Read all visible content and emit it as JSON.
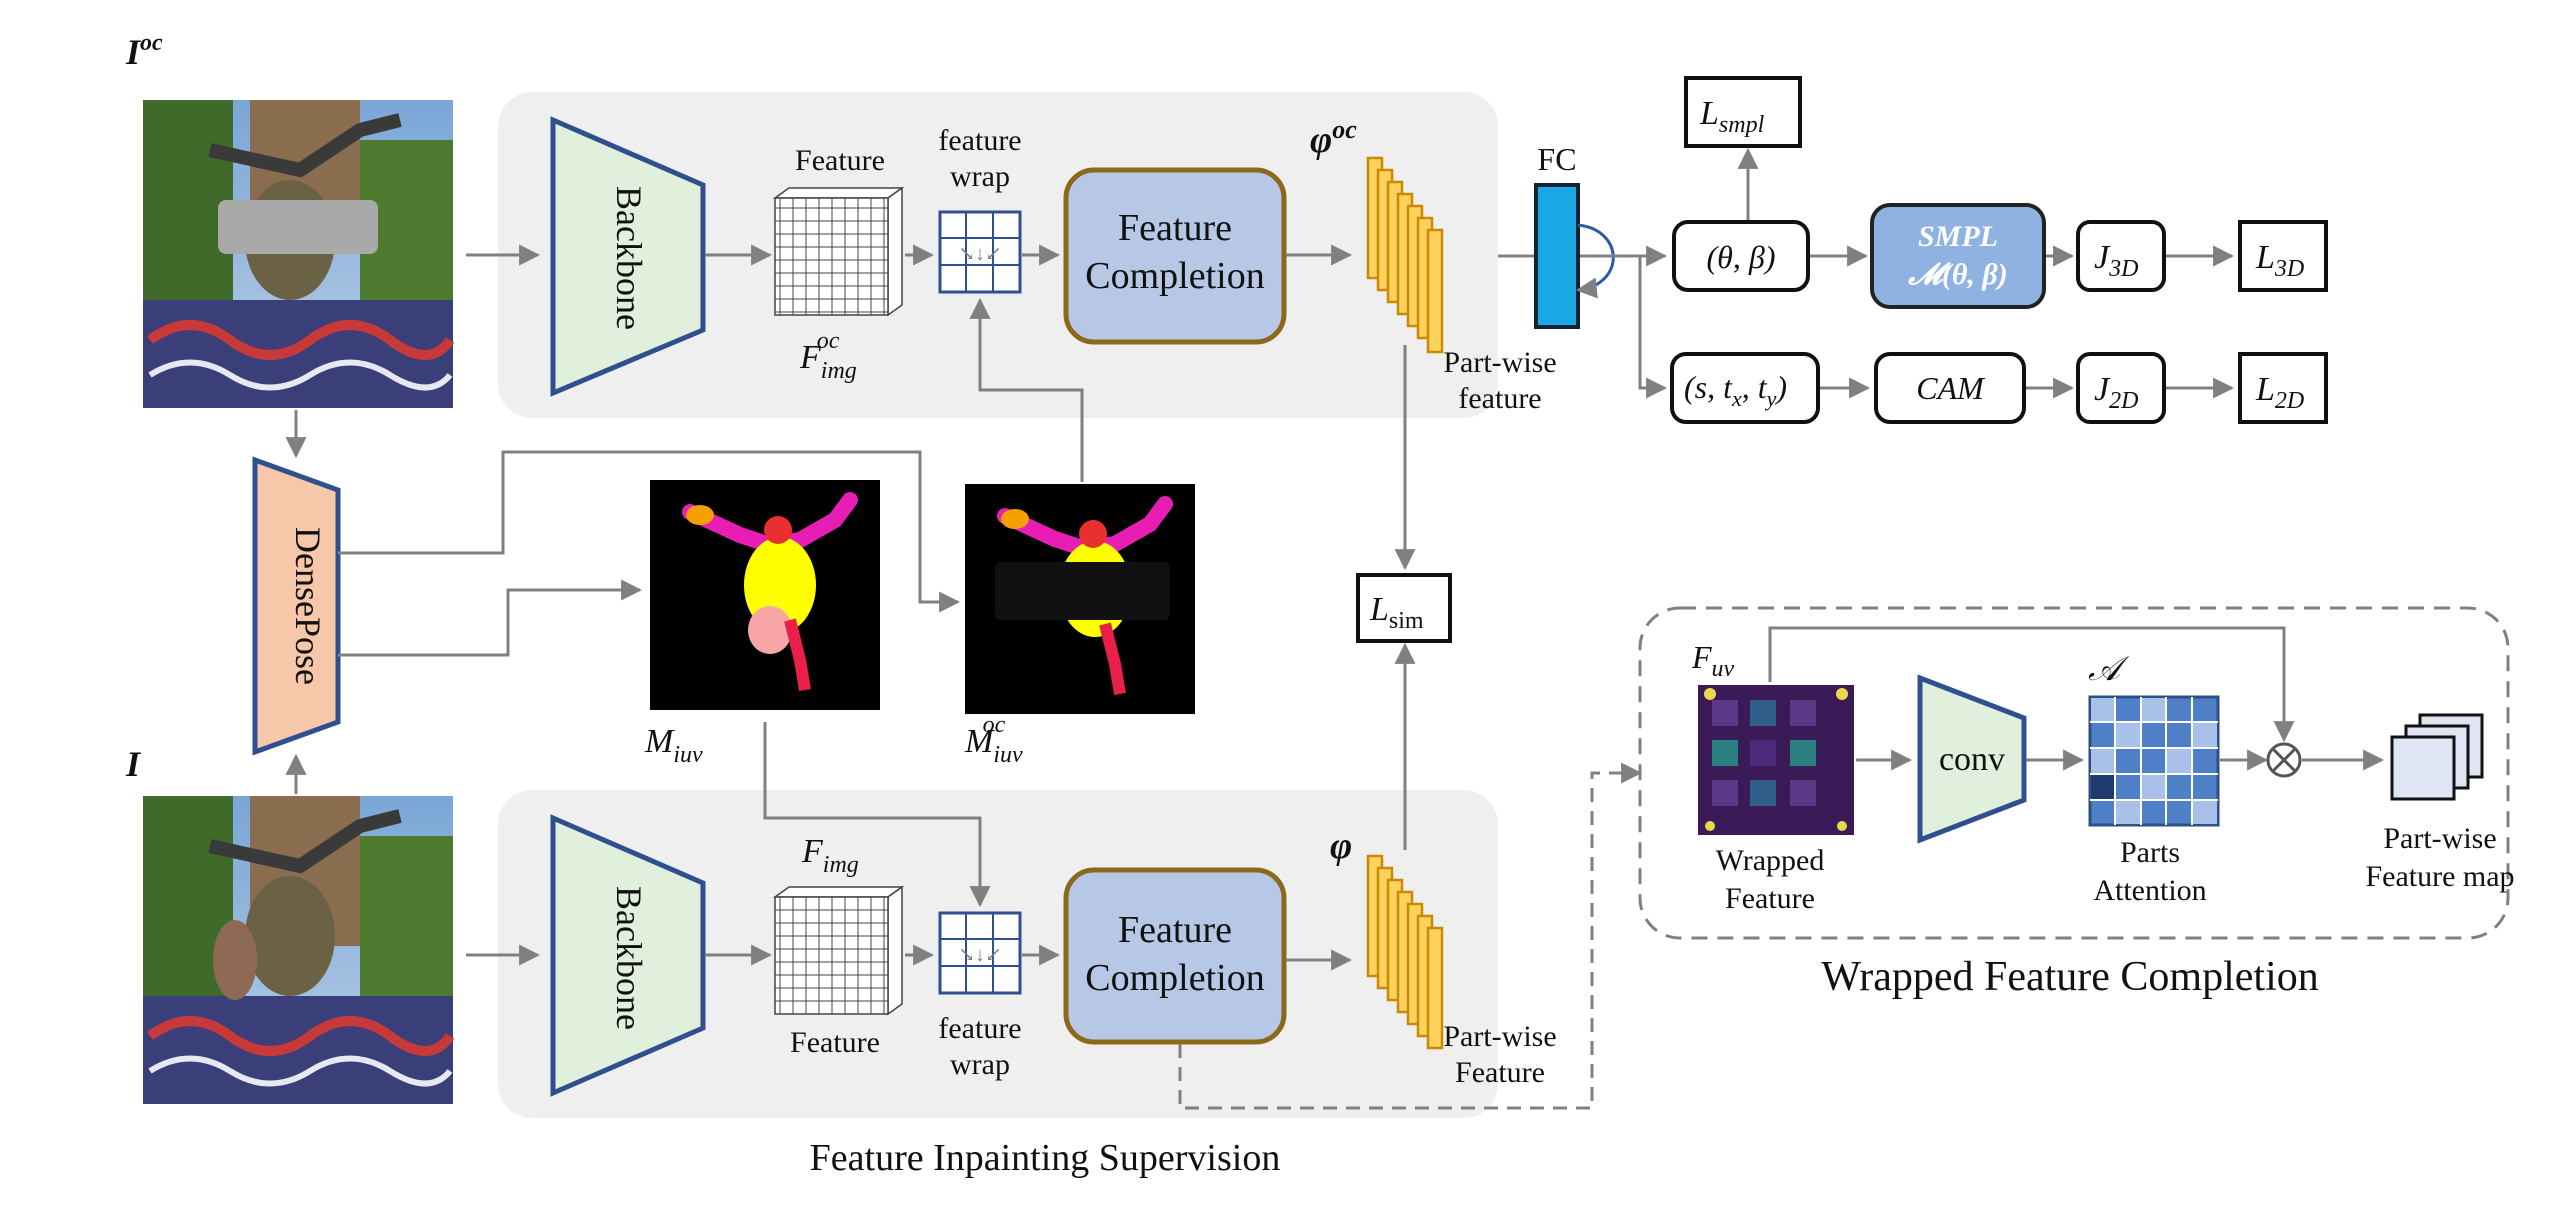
{
  "inputs": {
    "occluded_label": "I",
    "occluded_sup": "oc",
    "clean_label": "I"
  },
  "densepose": "DensePose",
  "top_branch": {
    "backbone": "Backbone",
    "feature_title": "Feature",
    "feature_sym": "F",
    "feature_sub": "img",
    "feature_sup": "oc",
    "wrap_line1": "feature",
    "wrap_line2": "wrap",
    "completion_line1": "Feature",
    "completion_line2": "Completion",
    "phi_sym": "φ",
    "phi_sup": "oc",
    "partwise_line1": "Part-wise",
    "partwise_line2": "feature"
  },
  "bottom_branch": {
    "backbone": "Backbone",
    "feature_sym": "F",
    "feature_sub": "img",
    "feature_caption": "Feature",
    "wrap_line1": "feature",
    "wrap_line2": "wrap",
    "completion_line1": "Feature",
    "completion_line2": "Completion",
    "phi_sym": "φ",
    "partwise_line1": "Part-wise",
    "partwise_line2": "Feature"
  },
  "masks": {
    "m_sym": "M",
    "m_sub": "iuv",
    "moc_sub": "iuv",
    "moc_sup": "oc"
  },
  "head": {
    "fc": "FC",
    "l_smpl_sym": "L",
    "l_smpl_sub": "smpl",
    "theta_beta": "(θ, β)",
    "smpl_line1": "SMPL",
    "smpl_line2": "𝓜(θ, β)",
    "j3d_sym": "J",
    "j3d_sub": "3D",
    "l3d_sym": "L",
    "l3d_sub": "3D",
    "cam_params": "(s, t",
    "cam_tx_sub": "x",
    "cam_ty_sub": "y",
    "cam": "CAM",
    "j2d_sym": "J",
    "j2d_sub": "2D",
    "l2d_sym": "L",
    "l2d_sub": "2D",
    "lsim_sym": "L",
    "lsim_sub": "sim"
  },
  "wfc": {
    "fuv_sym": "F",
    "fuv_sub": "uv",
    "wrapped_line1": "Wrapped",
    "wrapped_line2": "Feature",
    "conv": "conv",
    "attn_sym": "𝒜",
    "parts_line1": "Parts",
    "parts_line2": "Attention",
    "pwmap_line1": "Part-wise",
    "pwmap_line2": "Feature map",
    "title": "Wrapped Feature Completion"
  },
  "caption": "Feature Inpainting Supervision",
  "colors": {
    "panel": "#efefef",
    "backbone_fill": "#e1f0dc",
    "backbone_stroke": "#2f4f8f",
    "completion_fill": "#b7c7e6",
    "completion_stroke": "#8a6a1a",
    "densepose_fill": "#f6c8a9",
    "fc_fill": "#1aa7e6",
    "smpl_fill": "#8fb2e3",
    "partwise_fill": "#ffd25e",
    "partwise_stroke": "#c98a00",
    "arrow": "#808080"
  }
}
